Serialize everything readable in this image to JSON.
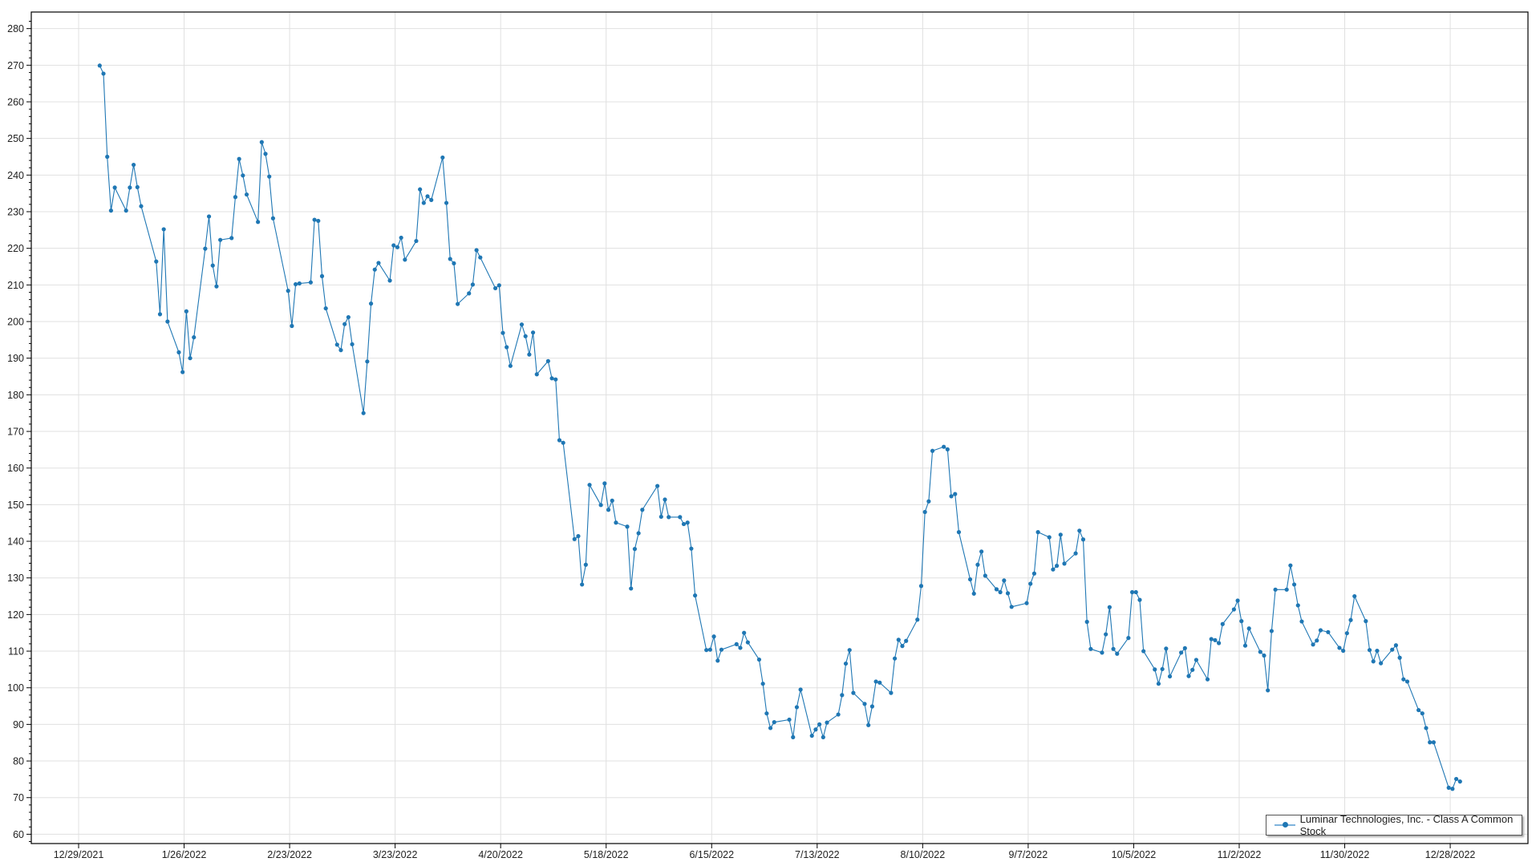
{
  "chart_data": {
    "type": "line",
    "title": "",
    "xlabel": "",
    "ylabel": "",
    "ylim": [
      60,
      280
    ],
    "y_ticks": [
      "60",
      "70",
      "80",
      "90",
      "100",
      "110",
      "120",
      "130",
      "140",
      "150",
      "160",
      "170",
      "180",
      "190",
      "200",
      "210",
      "220",
      "230",
      "240",
      "250",
      "260",
      "270",
      "280"
    ],
    "x_ticks": [
      "12/29/2021",
      "1/26/2022",
      "2/23/2022",
      "3/23/2022",
      "4/20/2022",
      "5/18/2022",
      "6/15/2022",
      "7/13/2022",
      "8/10/2022",
      "9/7/2022",
      "10/5/2022",
      "11/2/2022",
      "11/30/2022",
      "12/28/2022"
    ],
    "xlim": [
      "2021-12-17",
      "2023-01-18"
    ],
    "grid": true,
    "legend_position": "bottom-right",
    "colors": {
      "series": "#1f77b4",
      "grid": "#e0e0e0",
      "axis": "#000000"
    },
    "series": [
      {
        "name": "Luminar Technologies, Inc.  - Class A Common Stock",
        "marker": "circle",
        "x": [
          "2022-01-03",
          "2022-01-04",
          "2022-01-05",
          "2022-01-06",
          "2022-01-07",
          "2022-01-10",
          "2022-01-11",
          "2022-01-12",
          "2022-01-13",
          "2022-01-14",
          "2022-01-18",
          "2022-01-19",
          "2022-01-20",
          "2022-01-21",
          "2022-01-24",
          "2022-01-25",
          "2022-01-26",
          "2022-01-27",
          "2022-01-28",
          "2022-01-31",
          "2022-02-01",
          "2022-02-02",
          "2022-02-03",
          "2022-02-04",
          "2022-02-07",
          "2022-02-08",
          "2022-02-09",
          "2022-02-10",
          "2022-02-11",
          "2022-02-14",
          "2022-02-15",
          "2022-02-16",
          "2022-02-17",
          "2022-02-18",
          "2022-02-22",
          "2022-02-23",
          "2022-02-24",
          "2022-02-25",
          "2022-02-28",
          "2022-03-01",
          "2022-03-02",
          "2022-03-03",
          "2022-03-04",
          "2022-03-07",
          "2022-03-08",
          "2022-03-09",
          "2022-03-10",
          "2022-03-11",
          "2022-03-14",
          "2022-03-15",
          "2022-03-16",
          "2022-03-17",
          "2022-03-18",
          "2022-03-21",
          "2022-03-22",
          "2022-03-23",
          "2022-03-24",
          "2022-03-25",
          "2022-03-28",
          "2022-03-29",
          "2022-03-30",
          "2022-03-31",
          "2022-04-01",
          "2022-04-04",
          "2022-04-05",
          "2022-04-06",
          "2022-04-07",
          "2022-04-08",
          "2022-04-11",
          "2022-04-12",
          "2022-04-13",
          "2022-04-14",
          "2022-04-18",
          "2022-04-19",
          "2022-04-20",
          "2022-04-21",
          "2022-04-22",
          "2022-04-25",
          "2022-04-26",
          "2022-04-27",
          "2022-04-28",
          "2022-04-29",
          "2022-05-02",
          "2022-05-03",
          "2022-05-04",
          "2022-05-05",
          "2022-05-06",
          "2022-05-09",
          "2022-05-10",
          "2022-05-11",
          "2022-05-12",
          "2022-05-13",
          "2022-05-16",
          "2022-05-17",
          "2022-05-18",
          "2022-05-19",
          "2022-05-20",
          "2022-05-23",
          "2022-05-24",
          "2022-05-25",
          "2022-05-26",
          "2022-05-27",
          "2022-05-31",
          "2022-06-01",
          "2022-06-02",
          "2022-06-03",
          "2022-06-06",
          "2022-06-07",
          "2022-06-08",
          "2022-06-09",
          "2022-06-10",
          "2022-06-13",
          "2022-06-14",
          "2022-06-15",
          "2022-06-16",
          "2022-06-17",
          "2022-06-21",
          "2022-06-22",
          "2022-06-23",
          "2022-06-24",
          "2022-06-27",
          "2022-06-28",
          "2022-06-29",
          "2022-06-30",
          "2022-07-01",
          "2022-07-05",
          "2022-07-06",
          "2022-07-07",
          "2022-07-08",
          "2022-07-11",
          "2022-07-12",
          "2022-07-13",
          "2022-07-14",
          "2022-07-15",
          "2022-07-18",
          "2022-07-19",
          "2022-07-20",
          "2022-07-21",
          "2022-07-22",
          "2022-07-25",
          "2022-07-26",
          "2022-07-27",
          "2022-07-28",
          "2022-07-29",
          "2022-08-01",
          "2022-08-02",
          "2022-08-03",
          "2022-08-04",
          "2022-08-05",
          "2022-08-08",
          "2022-08-09",
          "2022-08-10",
          "2022-08-11",
          "2022-08-12",
          "2022-08-15",
          "2022-08-16",
          "2022-08-17",
          "2022-08-18",
          "2022-08-19",
          "2022-08-22",
          "2022-08-23",
          "2022-08-24",
          "2022-08-25",
          "2022-08-26",
          "2022-08-29",
          "2022-08-30",
          "2022-08-31",
          "2022-09-01",
          "2022-09-02",
          "2022-09-06",
          "2022-09-07",
          "2022-09-08",
          "2022-09-09",
          "2022-09-12",
          "2022-09-13",
          "2022-09-14",
          "2022-09-15",
          "2022-09-16",
          "2022-09-19",
          "2022-09-20",
          "2022-09-21",
          "2022-09-22",
          "2022-09-23",
          "2022-09-26",
          "2022-09-27",
          "2022-09-28",
          "2022-09-29",
          "2022-09-30",
          "2022-10-03",
          "2022-10-04",
          "2022-10-05",
          "2022-10-06",
          "2022-10-07",
          "2022-10-10",
          "2022-10-11",
          "2022-10-12",
          "2022-10-13",
          "2022-10-14",
          "2022-10-17",
          "2022-10-18",
          "2022-10-19",
          "2022-10-20",
          "2022-10-21",
          "2022-10-24",
          "2022-10-25",
          "2022-10-26",
          "2022-10-27",
          "2022-10-28",
          "2022-10-31",
          "2022-11-01",
          "2022-11-02",
          "2022-11-03",
          "2022-11-04",
          "2022-11-07",
          "2022-11-08",
          "2022-11-09",
          "2022-11-10",
          "2022-11-11",
          "2022-11-14",
          "2022-11-15",
          "2022-11-16",
          "2022-11-17",
          "2022-11-18",
          "2022-11-21",
          "2022-11-22",
          "2022-11-23",
          "2022-11-25",
          "2022-11-28",
          "2022-11-29",
          "2022-11-30",
          "2022-12-01",
          "2022-12-02",
          "2022-12-05",
          "2022-12-06",
          "2022-12-07",
          "2022-12-08",
          "2022-12-09",
          "2022-12-12",
          "2022-12-13",
          "2022-12-14",
          "2022-12-15",
          "2022-12-16",
          "2022-12-19",
          "2022-12-20",
          "2022-12-21",
          "2022-12-22",
          "2022-12-23",
          "2022-12-27",
          "2022-12-28",
          "2022-12-29",
          "2022-12-30"
        ],
        "y": [
          269.9,
          267.7,
          245.0,
          230.3,
          236.6,
          230.3,
          236.6,
          242.8,
          236.7,
          231.5,
          216.4,
          202.0,
          225.2,
          200.0,
          191.6,
          186.2,
          202.8,
          190.0,
          195.7,
          219.9,
          228.7,
          215.3,
          209.6,
          222.3,
          222.8,
          234.0,
          244.4,
          239.9,
          234.7,
          227.2,
          249.0,
          245.8,
          239.6,
          228.2,
          208.4,
          198.8,
          210.2,
          210.4,
          210.7,
          227.8,
          227.5,
          212.4,
          203.6,
          193.7,
          192.2,
          199.3,
          201.2,
          193.8,
          175.0,
          189.1,
          204.9,
          214.2,
          216.0,
          211.2,
          220.8,
          220.3,
          222.9,
          216.9,
          222.0,
          236.1,
          232.4,
          234.2,
          233.2,
          244.8,
          232.4,
          217.1,
          215.9,
          204.8,
          207.7,
          210.1,
          219.5,
          217.5,
          209.1,
          209.9,
          196.9,
          193.0,
          187.9,
          199.2,
          196.0,
          191.0,
          197.0,
          185.6,
          189.2,
          184.5,
          184.2,
          167.6,
          166.9,
          140.6,
          141.4,
          128.2,
          133.6,
          155.4,
          149.9,
          155.8,
          148.6,
          151.1,
          145.1,
          144.0,
          127.1,
          137.9,
          142.2,
          148.6,
          155.1,
          146.7,
          151.4,
          146.6,
          146.6,
          144.7,
          145.1,
          138.0,
          125.2,
          110.3,
          110.4,
          114.0,
          107.4,
          110.4,
          111.9,
          110.9,
          115.0,
          112.4,
          107.7,
          101.1,
          93.0,
          89.0,
          90.6,
          91.3,
          86.5,
          94.7,
          99.5,
          86.9,
          88.6,
          90.0,
          86.5,
          90.5,
          92.7,
          98.0,
          106.6,
          110.3,
          98.6,
          95.6,
          89.8,
          94.9,
          101.7,
          101.4,
          98.6,
          108.0,
          113.1,
          111.4,
          112.8,
          118.6,
          127.8,
          148.0,
          150.9,
          164.7,
          165.8,
          165.1,
          152.3,
          152.9,
          142.5,
          129.6,
          125.7,
          133.6,
          137.2,
          130.6,
          126.9,
          126.1,
          129.3,
          125.8,
          122.1,
          123.1,
          128.4,
          131.2,
          142.5,
          141.1,
          132.3,
          133.3,
          141.8,
          133.9,
          136.7,
          142.9,
          140.5,
          118.0,
          110.6,
          109.6,
          114.6,
          122.0,
          110.6,
          109.3,
          113.6,
          126.1,
          126.1,
          124.0,
          110.0,
          105.0,
          101.1,
          105.1,
          110.7,
          103.1,
          109.6,
          110.8,
          103.2,
          104.9,
          107.6,
          102.3,
          113.3,
          113.0,
          112.2,
          117.4,
          121.4,
          123.8,
          118.2,
          111.5,
          116.2,
          109.8,
          108.8,
          99.3,
          115.5,
          126.8,
          126.8,
          133.4,
          128.2,
          122.5,
          118.1,
          111.8,
          112.9,
          115.7,
          115.2,
          110.9,
          110.1,
          114.9,
          118.5,
          125.0,
          118.2,
          110.3,
          107.2,
          110.1,
          106.7,
          110.4,
          111.6,
          108.2,
          102.3,
          101.7,
          93.9,
          93.0,
          89.0,
          85.1,
          85.1,
          72.7,
          72.4,
          75.1,
          74.4
        ]
      }
    ]
  }
}
